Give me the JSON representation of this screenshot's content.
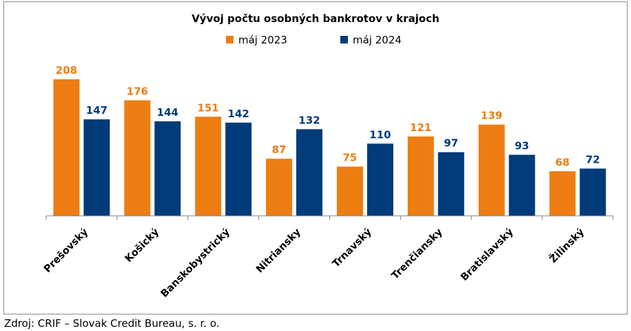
{
  "chart_data": {
    "type": "bar",
    "title": "Vývoj počtu osobných bankrotov v krajoch",
    "categories": [
      "Prešovský",
      "Košický",
      "Banskobystrický",
      "Nitriansky",
      "Trnavský",
      "Trenčiansky",
      "Bratislavský",
      "Žilinský"
    ],
    "series": [
      {
        "name": "máj 2023",
        "color": "#ED7D12",
        "values": [
          208,
          176,
          151,
          87,
          75,
          121,
          139,
          68
        ]
      },
      {
        "name": "máj 2024",
        "color": "#003B7A",
        "values": [
          147,
          144,
          142,
          132,
          110,
          97,
          93,
          72
        ]
      }
    ],
    "ylim": [
      0,
      208
    ],
    "legend_position": "top-center",
    "grid": false,
    "xlabel": "",
    "ylabel": ""
  },
  "footer": {
    "source": "Zdroj: CRIF – Slovak Credit Bureau, s. r. o."
  }
}
